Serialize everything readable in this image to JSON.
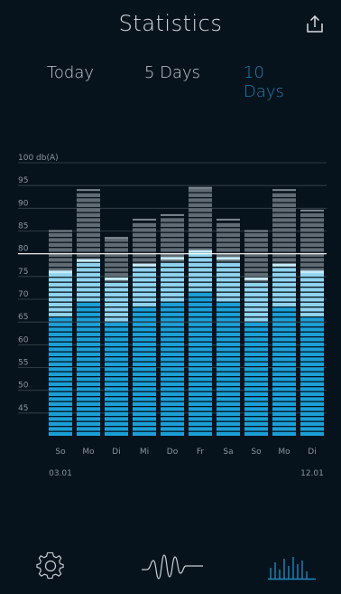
{
  "header": {
    "title": "Statistics",
    "share_icon": "share-icon"
  },
  "tabs": [
    {
      "label": "Today",
      "active": false
    },
    {
      "label": "5 Days",
      "active": false
    },
    {
      "label": "10 Days",
      "active": true
    }
  ],
  "colors": {
    "background": "#07131c",
    "active_tab": "#1e7eb2",
    "bar_blue": "#1b9fd6",
    "bar_light": "#8fd3ef",
    "bar_gray": "#616b73",
    "threshold_line": "#ffffff",
    "nav_active": "#1e88c0"
  },
  "chart_data": {
    "type": "bar",
    "yunit": "db(A)",
    "ylim": [
      40,
      100
    ],
    "yticks": [
      {
        "value": 100,
        "label": "100 db(A)"
      },
      {
        "value": 95,
        "label": "95"
      },
      {
        "value": 90,
        "label": "90"
      },
      {
        "value": 85,
        "label": "85"
      },
      {
        "value": 80,
        "label": "80"
      },
      {
        "value": 75,
        "label": "75"
      },
      {
        "value": 70,
        "label": "70"
      },
      {
        "value": 65,
        "label": "65"
      },
      {
        "value": 60,
        "label": "60"
      },
      {
        "value": 55,
        "label": "55"
      },
      {
        "value": 50,
        "label": "50"
      },
      {
        "value": 45,
        "label": "45"
      }
    ],
    "threshold": 80,
    "categories": [
      "So",
      "Mo",
      "Di",
      "Mi",
      "Do",
      "Fr",
      "Sa",
      "So",
      "Mo",
      "Di"
    ],
    "date_labels": [
      "03.01",
      "",
      "",
      "",
      "",
      "",
      "",
      "",
      "",
      "12.01"
    ],
    "series": [
      {
        "values": [
          76,
          78.5,
          74.5,
          77.5,
          79,
          80.5,
          79,
          74.5,
          77.5,
          76
        ]
      },
      {
        "values": [
          85,
          94,
          83.5,
          87.5,
          88.5,
          94.5,
          87.5,
          85,
          94,
          89.5
        ]
      }
    ]
  },
  "bottom_nav": [
    {
      "icon": "settings-gear-icon",
      "active": false
    },
    {
      "icon": "waveform-icon",
      "active": false
    },
    {
      "icon": "statistics-bars-icon",
      "active": true
    }
  ]
}
